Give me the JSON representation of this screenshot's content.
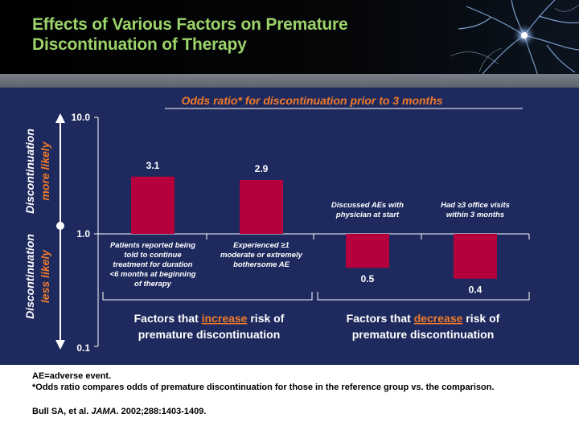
{
  "slide": {
    "title_line1": "Effects of Various Factors on Premature",
    "title_line2": "Discontinuation of Therapy"
  },
  "chart_data": {
    "type": "bar",
    "title": "Odds ratio* for discontinuation prior to 3 months",
    "scale": "log",
    "ylim": [
      0.1,
      10.0
    ],
    "baseline": 1.0,
    "y_ticks": [
      "10.0",
      "1.0",
      "0.1"
    ],
    "y_tick_values": [
      10.0,
      1.0,
      0.1
    ],
    "categories": [
      "Patients reported being told to continue treatment for duration <6 months at beginning of therapy",
      "Experienced ≥1 moderate or extremely bothersome AE",
      "Discussed AEs with physician at start",
      "Had ≥3 office visits within 3 months"
    ],
    "category_lines": [
      [
        "Patients reported being",
        "told to continue",
        "treatment for duration",
        "<6 months at beginning",
        "of therapy"
      ],
      [
        "Experienced ≥1",
        "moderate or extremely",
        "bothersome AE"
      ],
      [
        "Discussed AEs with",
        "physician at start"
      ],
      [
        "Had ≥3 office visits",
        "within 3 months"
      ]
    ],
    "values": [
      3.1,
      2.9,
      0.5,
      0.4
    ],
    "value_labels": [
      "3.1",
      "2.9",
      "0.5",
      "0.4"
    ],
    "bar_color": "#b5003d",
    "y_annotation_top": [
      "Discontinuation",
      "more likely"
    ],
    "y_annotation_bottom": [
      "Discontinuation",
      "less likely"
    ],
    "groups": [
      {
        "prefix": "Factors that ",
        "emphasis": "increase",
        "suffix": " risk of",
        "line2": "premature discontinuation"
      },
      {
        "prefix": "Factors that ",
        "emphasis": "decrease",
        "suffix": " risk of",
        "line2": "premature discontinuation"
      }
    ],
    "accent_color": "#f07a2a"
  },
  "footer": {
    "note1": "AE=adverse event.",
    "note2": "*Odds ratio compares odds of premature discontinuation for those in the reference group vs. the comparison.",
    "cite_author": "Bull SA, et al. ",
    "cite_journal": "JAMA",
    "cite_rest": ". 2002;288:1403-1409."
  }
}
